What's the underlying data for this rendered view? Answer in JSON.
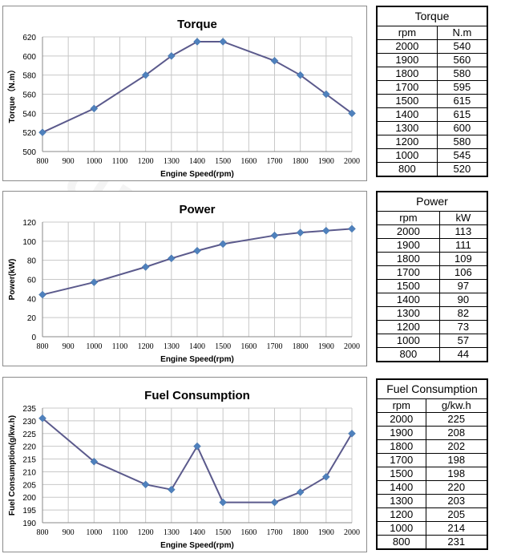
{
  "watermark": "CUMMINS",
  "colors": {
    "series": "#5b5a8c",
    "marker": "#4f81bd",
    "grid": "#c8c8c8"
  },
  "chart_data": [
    {
      "type": "line",
      "title": "Torque",
      "xlabel": "Engine Speed(rpm)",
      "ylabel": "Torque（N.m）",
      "x": [
        800,
        1000,
        1200,
        1300,
        1400,
        1500,
        1700,
        1800,
        1900,
        2000
      ],
      "values": [
        520,
        545,
        580,
        600,
        615,
        615,
        595,
        580,
        560,
        540
      ],
      "xlim": [
        800,
        2000
      ],
      "xticks": [
        800,
        900,
        1000,
        1100,
        1200,
        1300,
        1400,
        1500,
        1600,
        1700,
        1800,
        1900,
        2000
      ],
      "ylim": [
        500,
        620
      ],
      "yticks": [
        500,
        520,
        540,
        560,
        580,
        600,
        620
      ],
      "grid": true
    },
    {
      "type": "line",
      "title": "Power",
      "xlabel": "Engine Speed(rpm)",
      "ylabel": "Power(kW)",
      "x": [
        800,
        1000,
        1200,
        1300,
        1400,
        1500,
        1700,
        1800,
        1900,
        2000
      ],
      "values": [
        44,
        57,
        73,
        82,
        90,
        97,
        106,
        109,
        111,
        113
      ],
      "xlim": [
        800,
        2000
      ],
      "xticks": [
        800,
        900,
        1000,
        1100,
        1200,
        1300,
        1400,
        1500,
        1600,
        1700,
        1800,
        1900,
        2000
      ],
      "ylim": [
        0,
        120
      ],
      "yticks": [
        0,
        20,
        40,
        60,
        80,
        100,
        120
      ],
      "grid": true
    },
    {
      "type": "line",
      "title": "Fuel Consumption",
      "xlabel": "Engine Speed(rpm)",
      "ylabel": "Fuel Consumption(g/kw.h)",
      "x": [
        800,
        1000,
        1200,
        1300,
        1400,
        1500,
        1700,
        1800,
        1900,
        2000
      ],
      "values": [
        231,
        214,
        205,
        203,
        220,
        198,
        198,
        202,
        208,
        225
      ],
      "xlim": [
        800,
        2000
      ],
      "xticks": [
        800,
        900,
        1000,
        1100,
        1200,
        1300,
        1400,
        1500,
        1600,
        1700,
        1800,
        1900,
        2000
      ],
      "ylim": [
        190,
        235
      ],
      "yticks": [
        190,
        195,
        200,
        205,
        210,
        215,
        220,
        225,
        230,
        235
      ],
      "grid": true
    }
  ],
  "tables": [
    {
      "title": "Torque",
      "headers": [
        "rpm",
        "N.m"
      ],
      "rows": [
        [
          "2000",
          "540"
        ],
        [
          "1900",
          "560"
        ],
        [
          "1800",
          "580"
        ],
        [
          "1700",
          "595"
        ],
        [
          "1500",
          "615"
        ],
        [
          "1400",
          "615"
        ],
        [
          "1300",
          "600"
        ],
        [
          "1200",
          "580"
        ],
        [
          "1000",
          "545"
        ],
        [
          "800",
          "520"
        ]
      ]
    },
    {
      "title": "Power",
      "headers": [
        "rpm",
        "kW"
      ],
      "rows": [
        [
          "2000",
          "113"
        ],
        [
          "1900",
          "111"
        ],
        [
          "1800",
          "109"
        ],
        [
          "1700",
          "106"
        ],
        [
          "1500",
          "97"
        ],
        [
          "1400",
          "90"
        ],
        [
          "1300",
          "82"
        ],
        [
          "1200",
          "73"
        ],
        [
          "1000",
          "57"
        ],
        [
          "800",
          "44"
        ]
      ]
    },
    {
      "title": "Fuel Consumption",
      "headers": [
        "rpm",
        "g/kw.h"
      ],
      "rows": [
        [
          "2000",
          "225"
        ],
        [
          "1900",
          "208"
        ],
        [
          "1800",
          "202"
        ],
        [
          "1700",
          "198"
        ],
        [
          "1500",
          "198"
        ],
        [
          "1400",
          "220"
        ],
        [
          "1300",
          "203"
        ],
        [
          "1200",
          "205"
        ],
        [
          "1000",
          "214"
        ],
        [
          "800",
          "231"
        ]
      ]
    }
  ]
}
